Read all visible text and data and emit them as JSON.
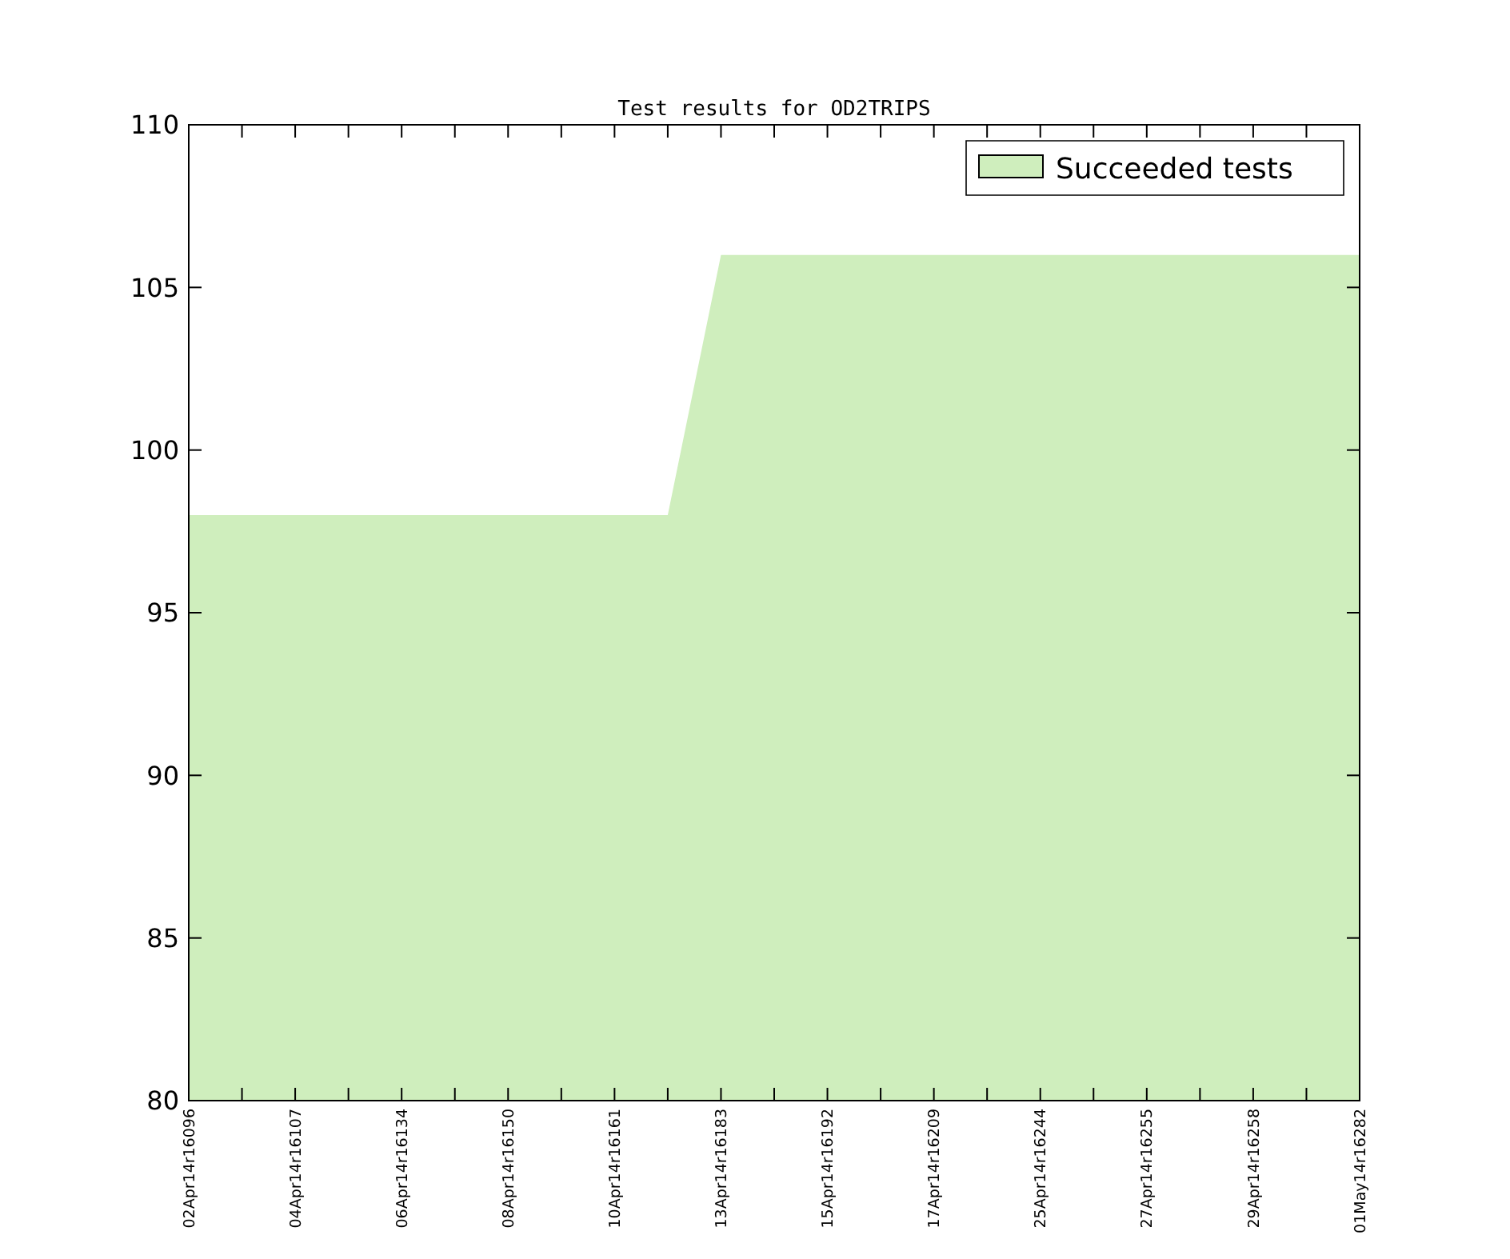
{
  "chart_data": {
    "type": "area",
    "title": "Test results for OD2TRIPS",
    "categories": [
      "02Apr14r16096",
      null,
      "04Apr14r16107",
      null,
      "06Apr14r16134",
      null,
      "08Apr14r16150",
      null,
      "10Apr14r16161",
      null,
      "13Apr14r16183",
      null,
      "15Apr14r16192",
      null,
      "17Apr14r16209",
      null,
      "25Apr14r16244",
      null,
      "27Apr14r16255",
      null,
      "29Apr14r16258",
      null,
      "01May14r16282"
    ],
    "series": [
      {
        "name": "Succeeded tests",
        "color": "#cfeebd",
        "values": [
          98,
          98,
          98,
          98,
          98,
          98,
          98,
          98,
          98,
          98,
          106,
          106,
          106,
          106,
          106,
          106,
          106,
          106,
          106,
          106,
          106,
          106,
          106
        ]
      }
    ],
    "ylim": [
      80,
      110
    ],
    "yticks": [
      80,
      85,
      90,
      95,
      100,
      105,
      110
    ],
    "grid": false,
    "legend": "top right"
  }
}
